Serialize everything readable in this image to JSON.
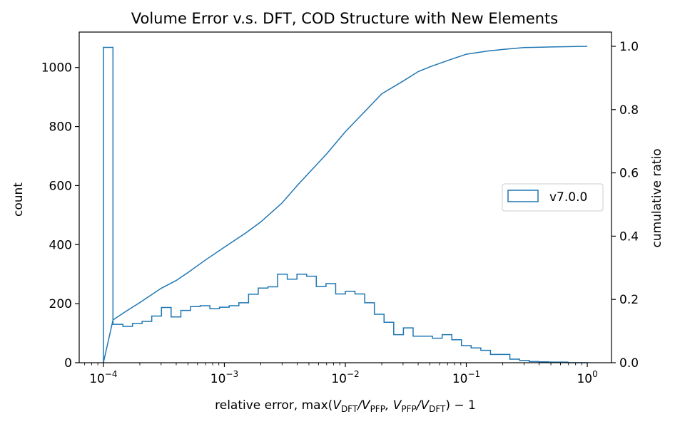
{
  "chart_data": {
    "type": "histogram+line",
    "title": "Volume Error v.s. DFT, COD Structure with New Elements",
    "xlabel": {
      "prefix": "relative error, max(",
      "p1": "V",
      "s1": "DFT",
      "p2": "/V",
      "s2": "PFP",
      "p3": ", V",
      "s3": "PFP",
      "p4": "/V",
      "s4": "DFT",
      "suffix": ") − 1"
    },
    "ylabel_left": "count",
    "ylabel_right": "cumulative ratio",
    "x_scale": "log",
    "xlim": [
      6.31e-05,
      1.585
    ],
    "ylim_left": [
      0,
      1120
    ],
    "ylim_right": [
      0,
      1.045
    ],
    "x_major_ticks": [
      {
        "value": 0.0001,
        "base": "10",
        "exp": "−4"
      },
      {
        "value": 0.001,
        "base": "10",
        "exp": "−3"
      },
      {
        "value": 0.01,
        "base": "10",
        "exp": "−2"
      },
      {
        "value": 0.1,
        "base": "10",
        "exp": "−1"
      },
      {
        "value": 1,
        "base": "10",
        "exp": "0"
      }
    ],
    "y_left_ticks": [
      "0",
      "200",
      "400",
      "600",
      "800",
      "1000"
    ],
    "y_right_ticks": [
      "0.0",
      "0.2",
      "0.4",
      "0.6",
      "0.8",
      "1.0"
    ],
    "legend": {
      "label": "v7.0.0",
      "position": "center-right"
    },
    "color": "#1f77b4",
    "histogram": {
      "bin_edges": [
        0.0001,
        0.00012,
        0.000145,
        0.000174,
        0.000209,
        0.000251,
        0.000302,
        0.000363,
        0.000437,
        0.000525,
        0.000631,
        0.000759,
        0.000912,
        0.001096,
        0.001318,
        0.001585,
        0.001905,
        0.002291,
        0.002754,
        0.003311,
        0.003981,
        0.004786,
        0.005754,
        0.006918,
        0.008318,
        0.01,
        0.01202,
        0.01445,
        0.01738,
        0.02089,
        0.02512,
        0.0302,
        0.03631,
        0.04365,
        0.05248,
        0.0631,
        0.07586,
        0.0912,
        0.1096,
        0.1318,
        0.1585,
        0.1905,
        0.2291,
        0.2754,
        0.3311,
        0.3981,
        0.4786,
        0.5754,
        0.6918,
        0.8318,
        1.0
      ],
      "counts": [
        1068,
        130,
        123,
        133,
        140,
        158,
        187,
        155,
        177,
        190,
        193,
        183,
        188,
        193,
        203,
        232,
        253,
        257,
        300,
        283,
        300,
        293,
        258,
        268,
        233,
        242,
        233,
        203,
        164,
        137,
        95,
        118,
        90,
        90,
        83,
        95,
        78,
        58,
        50,
        42,
        28,
        28,
        12,
        8,
        4,
        3,
        2,
        2,
        0,
        0
      ]
    },
    "cumulative": {
      "x": [
        0.0001,
        0.00012,
        0.00015,
        0.0002,
        0.0003,
        0.0004,
        0.0005,
        0.0007,
        0.001,
        0.0015,
        0.002,
        0.003,
        0.004,
        0.005,
        0.007,
        0.01,
        0.015,
        0.02,
        0.03,
        0.04,
        0.05,
        0.07,
        0.1,
        0.15,
        0.2,
        0.3,
        0.5,
        1.0
      ],
      "y": [
        0.0,
        0.135,
        0.16,
        0.19,
        0.235,
        0.26,
        0.285,
        0.325,
        0.365,
        0.41,
        0.445,
        0.505,
        0.56,
        0.6,
        0.66,
        0.73,
        0.8,
        0.85,
        0.89,
        0.92,
        0.935,
        0.955,
        0.975,
        0.985,
        0.99,
        0.996,
        0.998,
        1.0
      ]
    }
  }
}
